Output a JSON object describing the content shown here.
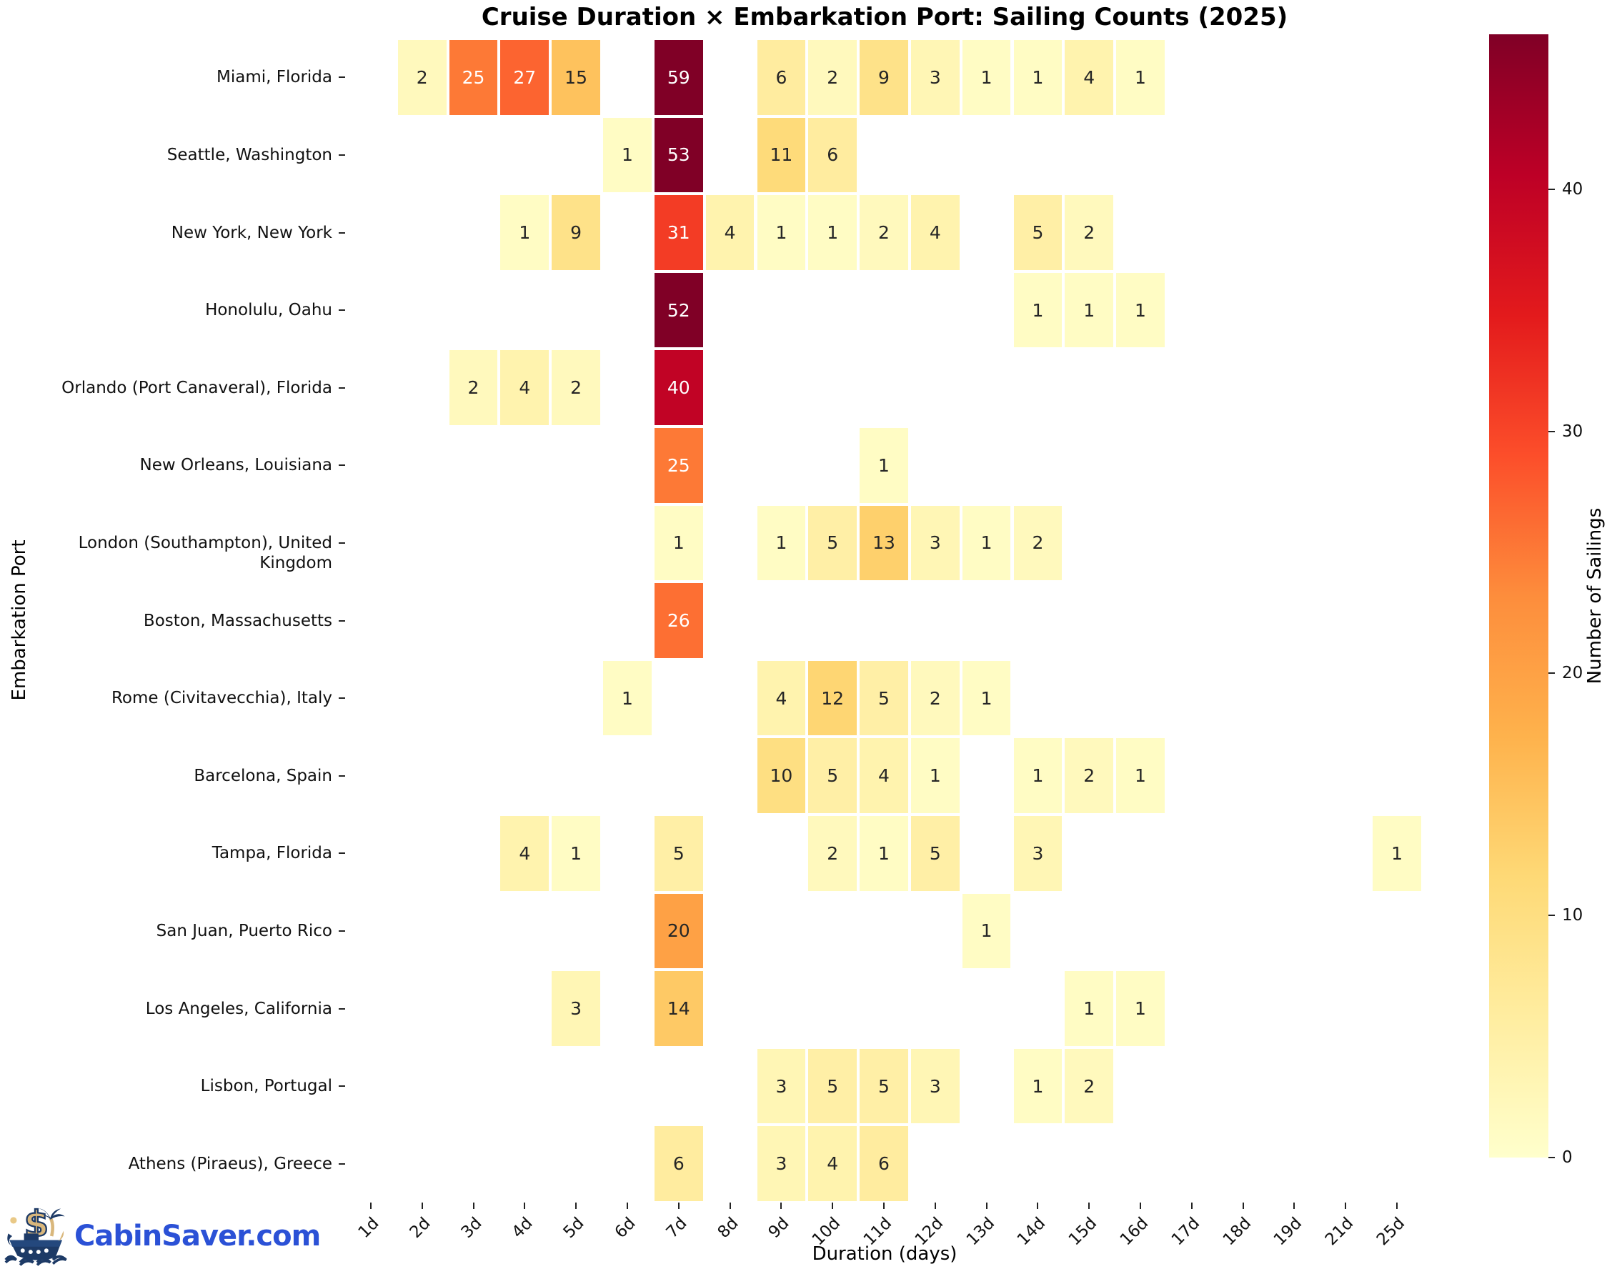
{
  "chart_data": {
    "type": "heatmap",
    "title": "Cruise Duration × Embarkation Port: Sailing Counts (2025)",
    "xlabel": "Duration (days)",
    "ylabel": "Embarkation Port",
    "colorbar_label": "Number of Sailings",
    "colorbar_ticks": [
      0,
      10,
      20,
      30,
      40
    ],
    "colormap": "YlOrRd",
    "color_vmax": 46.4,
    "legend_position": "right-colorbar",
    "grid": false,
    "x_categories": [
      "1d",
      "2d",
      "3d",
      "4d",
      "5d",
      "6d",
      "7d",
      "8d",
      "9d",
      "10d",
      "11d",
      "12d",
      "13d",
      "14d",
      "15d",
      "16d",
      "17d",
      "18d",
      "19d",
      "21d",
      "25d"
    ],
    "y_categories": [
      "Miami, Florida",
      "Seattle, Washington",
      "New York, New York",
      "Honolulu, Oahu",
      "Orlando (Port Canaveral), Florida",
      "New Orleans, Louisiana",
      "London (Southampton), United Kingdom",
      "Boston, Massachusetts",
      "Rome (Civitavecchia), Italy",
      "Barcelona, Spain",
      "Tampa, Florida",
      "San Juan, Puerto Rico",
      "Los Angeles, California",
      "Lisbon, Portugal",
      "Athens (Piraeus), Greece"
    ],
    "values": [
      [
        null,
        2,
        25,
        27,
        15,
        null,
        59,
        null,
        6,
        2,
        9,
        3,
        1,
        1,
        4,
        1,
        null,
        null,
        null,
        null,
        null
      ],
      [
        null,
        null,
        null,
        null,
        null,
        1,
        53,
        null,
        11,
        6,
        null,
        null,
        null,
        null,
        null,
        null,
        null,
        null,
        null,
        null,
        null
      ],
      [
        null,
        null,
        null,
        1,
        9,
        null,
        31,
        4,
        1,
        1,
        2,
        4,
        null,
        5,
        2,
        null,
        null,
        null,
        null,
        null,
        null
      ],
      [
        null,
        null,
        null,
        null,
        null,
        null,
        52,
        null,
        null,
        null,
        null,
        null,
        null,
        1,
        1,
        1,
        null,
        null,
        null,
        null,
        null
      ],
      [
        null,
        null,
        2,
        4,
        2,
        null,
        40,
        null,
        null,
        null,
        null,
        null,
        null,
        null,
        null,
        null,
        null,
        null,
        null,
        null,
        null
      ],
      [
        null,
        null,
        null,
        null,
        null,
        null,
        25,
        null,
        null,
        null,
        1,
        null,
        null,
        null,
        null,
        null,
        null,
        null,
        null,
        null,
        null
      ],
      [
        null,
        null,
        null,
        null,
        null,
        null,
        1,
        null,
        1,
        5,
        13,
        3,
        1,
        2,
        null,
        null,
        null,
        null,
        null,
        null,
        null
      ],
      [
        null,
        null,
        null,
        null,
        null,
        null,
        26,
        null,
        null,
        null,
        null,
        null,
        null,
        null,
        null,
        null,
        null,
        null,
        null,
        null,
        null
      ],
      [
        null,
        null,
        null,
        null,
        null,
        1,
        null,
        null,
        4,
        12,
        5,
        2,
        1,
        null,
        null,
        null,
        null,
        null,
        null,
        null,
        null
      ],
      [
        null,
        null,
        null,
        null,
        null,
        null,
        null,
        null,
        10,
        5,
        4,
        1,
        null,
        1,
        2,
        1,
        null,
        null,
        null,
        null,
        null
      ],
      [
        null,
        null,
        null,
        4,
        1,
        null,
        5,
        null,
        null,
        2,
        1,
        5,
        null,
        3,
        null,
        null,
        null,
        null,
        null,
        null,
        1
      ],
      [
        null,
        null,
        null,
        null,
        null,
        null,
        20,
        null,
        null,
        null,
        null,
        null,
        1,
        null,
        null,
        null,
        null,
        null,
        null,
        null,
        null
      ],
      [
        null,
        null,
        null,
        null,
        3,
        null,
        14,
        null,
        null,
        null,
        null,
        null,
        null,
        null,
        1,
        1,
        null,
        null,
        null,
        null,
        null
      ],
      [
        null,
        null,
        null,
        null,
        null,
        null,
        null,
        null,
        3,
        5,
        5,
        3,
        null,
        1,
        2,
        null,
        null,
        null,
        null,
        null,
        null
      ],
      [
        null,
        null,
        null,
        null,
        null,
        null,
        6,
        null,
        3,
        4,
        6,
        null,
        null,
        null,
        null,
        null,
        null,
        null,
        null,
        null,
        null
      ]
    ]
  },
  "branding": {
    "logo_text": "CabinSaver.com",
    "logo_color": "#2b51d6",
    "logo_icon": "cruise-ship-with-dollar-and-palm",
    "icon_navy": "#1d3a66",
    "icon_gold": "#d9b77c"
  }
}
